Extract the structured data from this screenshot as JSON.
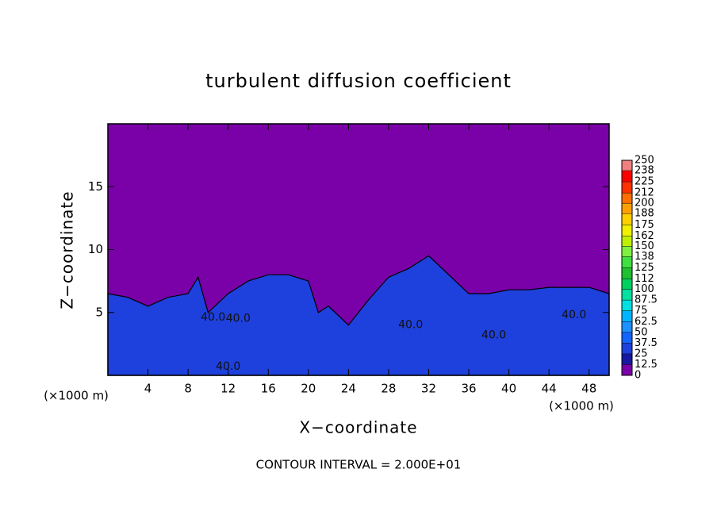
{
  "chart_data": {
    "type": "contour",
    "title": "turbulent diffusion coefficient",
    "xlabel": "X−coordinate",
    "ylabel": "Z−coordinate",
    "xunit": "(×1000 m)",
    "yunit": "(×1000 m)",
    "footer": "CONTOUR INTERVAL = 2.000E+01",
    "xlim": [
      0,
      50
    ],
    "ylim": [
      0,
      20
    ],
    "xticks": [
      4,
      8,
      12,
      16,
      20,
      24,
      28,
      32,
      36,
      40,
      44,
      48
    ],
    "yticks": [
      5,
      10,
      15
    ],
    "background_color": "#7a00a8",
    "x": [
      0,
      2,
      4,
      6,
      8,
      9,
      10,
      12,
      14,
      16,
      18,
      20,
      21,
      22,
      24,
      25,
      26,
      28,
      30,
      32,
      34,
      36,
      38,
      40,
      42,
      44,
      46,
      48,
      50
    ],
    "values": [
      6.5,
      6.2,
      5.5,
      6.2,
      6.5,
      7.8,
      5,
      6.5,
      7.5,
      8,
      8,
      7.5,
      5,
      5.5,
      4,
      5,
      6,
      7.8,
      8.5,
      9.5,
      8,
      6.5,
      6.5,
      6.8,
      6.8,
      7,
      7,
      7,
      6.5
    ],
    "color": "#1e40dc",
    "annotations": [
      {
        "text": "40.0",
        "x": 10.5,
        "y": 4.6
      },
      {
        "text": "40.0",
        "x": 13,
        "y": 4.5
      },
      {
        "text": "40.0",
        "x": 12,
        "y": 0.7
      },
      {
        "text": "40.0",
        "x": 30.2,
        "y": 4
      },
      {
        "text": "40.0",
        "x": 38.5,
        "y": 3.2
      },
      {
        "text": "40.0",
        "x": 46.5,
        "y": 4.8
      }
    ],
    "levels": [
      0,
      12.5,
      25,
      37.5,
      50,
      62.5,
      75,
      87.5,
      100,
      112,
      125,
      138,
      150,
      162,
      175,
      188,
      200,
      212,
      225,
      238,
      250
    ],
    "colors": [
      "#7a00a8",
      "#1818a0",
      "#1e40dc",
      "#1464ff",
      "#1e90ff",
      "#00b4ff",
      "#00e0e0",
      "#00e0a0",
      "#00d060",
      "#20c030",
      "#40e040",
      "#80f040",
      "#c0f000",
      "#f0f000",
      "#ffd000",
      "#ffa000",
      "#ff7000",
      "#ff3000",
      "#ff0000",
      "#f08080"
    ]
  }
}
